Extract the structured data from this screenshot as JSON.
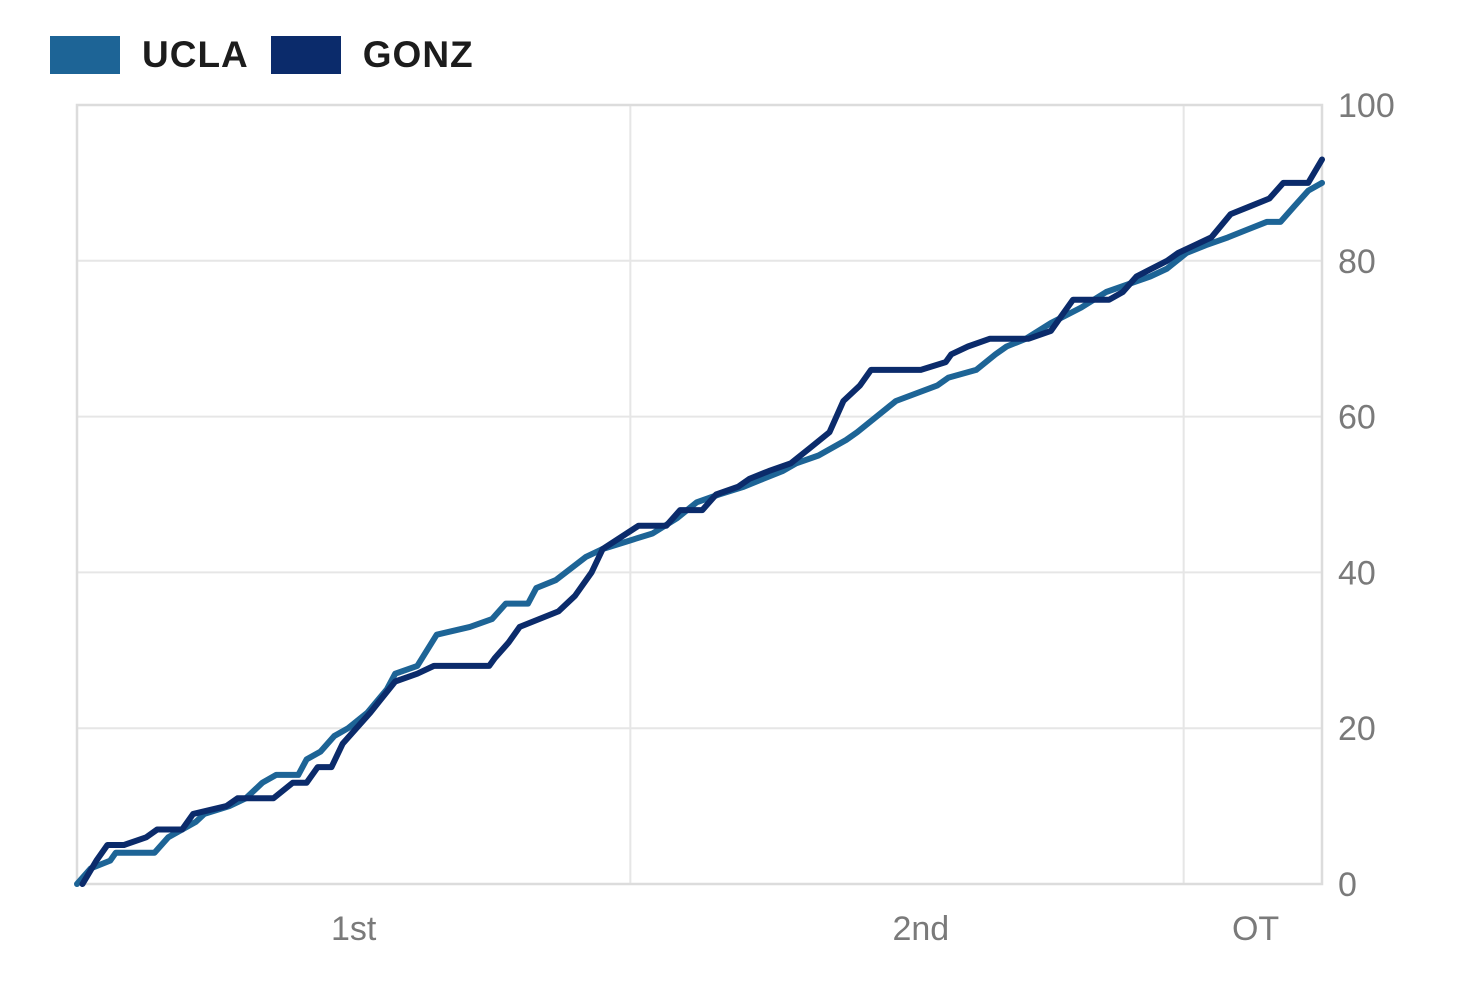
{
  "legend": [
    {
      "label": "UCLA",
      "color": "#1d6496"
    },
    {
      "label": "GONZ",
      "color": "#0b2b6b"
    }
  ],
  "chart_data": {
    "type": "line",
    "ylim": [
      0,
      100
    ],
    "yticks": [
      0,
      20,
      40,
      60,
      80,
      100
    ],
    "x_range": [
      0,
      45
    ],
    "period_boundaries": [
      20,
      40,
      45
    ],
    "x_tick_labels": [
      {
        "label": "1st",
        "x": 10
      },
      {
        "label": "2nd",
        "x": 30.5
      },
      {
        "label": "OT",
        "x": 42.6
      }
    ],
    "grid": true,
    "legend_position": "top-left",
    "series": [
      {
        "name": "UCLA",
        "color": "#1d6496",
        "points": [
          [
            0,
            0
          ],
          [
            0.5,
            2
          ],
          [
            1.2,
            3
          ],
          [
            1.4,
            4
          ],
          [
            2.8,
            4
          ],
          [
            3.3,
            6
          ],
          [
            4.3,
            8
          ],
          [
            4.6,
            9
          ],
          [
            5.5,
            10
          ],
          [
            6.1,
            11
          ],
          [
            6.7,
            13
          ],
          [
            7.2,
            14
          ],
          [
            8,
            14
          ],
          [
            8.3,
            16
          ],
          [
            8.8,
            17
          ],
          [
            9.3,
            19
          ],
          [
            9.8,
            20
          ],
          [
            10.5,
            22
          ],
          [
            11.2,
            25
          ],
          [
            11.5,
            27
          ],
          [
            12.3,
            28
          ],
          [
            13,
            32
          ],
          [
            14.2,
            33
          ],
          [
            15,
            34
          ],
          [
            15.5,
            36
          ],
          [
            16.3,
            36
          ],
          [
            16.6,
            38
          ],
          [
            17.3,
            39
          ],
          [
            18.4,
            42
          ],
          [
            19,
            43
          ],
          [
            19.9,
            44
          ],
          [
            20.8,
            45
          ],
          [
            21.7,
            47
          ],
          [
            22.4,
            49
          ],
          [
            23.2,
            50
          ],
          [
            24.1,
            51
          ],
          [
            24.8,
            52
          ],
          [
            25.5,
            53
          ],
          [
            26,
            54
          ],
          [
            26.8,
            55
          ],
          [
            27.8,
            57
          ],
          [
            28.2,
            58
          ],
          [
            29.6,
            62
          ],
          [
            31.1,
            64
          ],
          [
            31.5,
            65
          ],
          [
            32.5,
            66
          ],
          [
            33.2,
            68
          ],
          [
            33.6,
            69
          ],
          [
            34.3,
            70
          ],
          [
            35.2,
            72
          ],
          [
            36.3,
            74
          ],
          [
            37.2,
            76
          ],
          [
            38,
            77
          ],
          [
            38.8,
            78
          ],
          [
            39.4,
            79
          ],
          [
            40.1,
            81
          ],
          [
            40.8,
            82
          ],
          [
            41.6,
            83
          ],
          [
            42.3,
            84
          ],
          [
            43,
            85
          ],
          [
            43.5,
            85
          ],
          [
            44,
            87
          ],
          [
            44.5,
            89
          ],
          [
            45,
            90
          ]
        ]
      },
      {
        "name": "GONZ",
        "color": "#0b2b6b",
        "points": [
          [
            0.2,
            0
          ],
          [
            0.7,
            3
          ],
          [
            1.1,
            5
          ],
          [
            1.7,
            5
          ],
          [
            2.5,
            6
          ],
          [
            2.9,
            7
          ],
          [
            3.8,
            7
          ],
          [
            4.2,
            9
          ],
          [
            5.4,
            10
          ],
          [
            5.8,
            11
          ],
          [
            7.1,
            11
          ],
          [
            7.8,
            13
          ],
          [
            8.3,
            13
          ],
          [
            8.7,
            15
          ],
          [
            9.2,
            15
          ],
          [
            9.6,
            18
          ],
          [
            10.6,
            22
          ],
          [
            11.5,
            26
          ],
          [
            12.3,
            27
          ],
          [
            12.9,
            28
          ],
          [
            14.9,
            28
          ],
          [
            15.1,
            29
          ],
          [
            15.6,
            31
          ],
          [
            16,
            33
          ],
          [
            17.4,
            35
          ],
          [
            18,
            37
          ],
          [
            18.6,
            40
          ],
          [
            19,
            43
          ],
          [
            20.3,
            46
          ],
          [
            21.3,
            46
          ],
          [
            21.8,
            48
          ],
          [
            22.6,
            48
          ],
          [
            23.1,
            50
          ],
          [
            23.9,
            51
          ],
          [
            24.3,
            52
          ],
          [
            25,
            53
          ],
          [
            25.8,
            54
          ],
          [
            26.5,
            56
          ],
          [
            27.2,
            58
          ],
          [
            27.7,
            62
          ],
          [
            28.3,
            64
          ],
          [
            28.7,
            66
          ],
          [
            30.5,
            66
          ],
          [
            31.4,
            67
          ],
          [
            31.6,
            68
          ],
          [
            32.2,
            69
          ],
          [
            33,
            70
          ],
          [
            34.4,
            70
          ],
          [
            35.2,
            71
          ],
          [
            35.6,
            73
          ],
          [
            36,
            75
          ],
          [
            37.3,
            75
          ],
          [
            37.8,
            76
          ],
          [
            38.3,
            78
          ],
          [
            39.4,
            80
          ],
          [
            39.8,
            81
          ],
          [
            40.4,
            82
          ],
          [
            41,
            83
          ],
          [
            41.7,
            86
          ],
          [
            42.4,
            87
          ],
          [
            43.1,
            88
          ],
          [
            43.6,
            90
          ],
          [
            44.5,
            90
          ],
          [
            45,
            93
          ]
        ]
      }
    ]
  }
}
